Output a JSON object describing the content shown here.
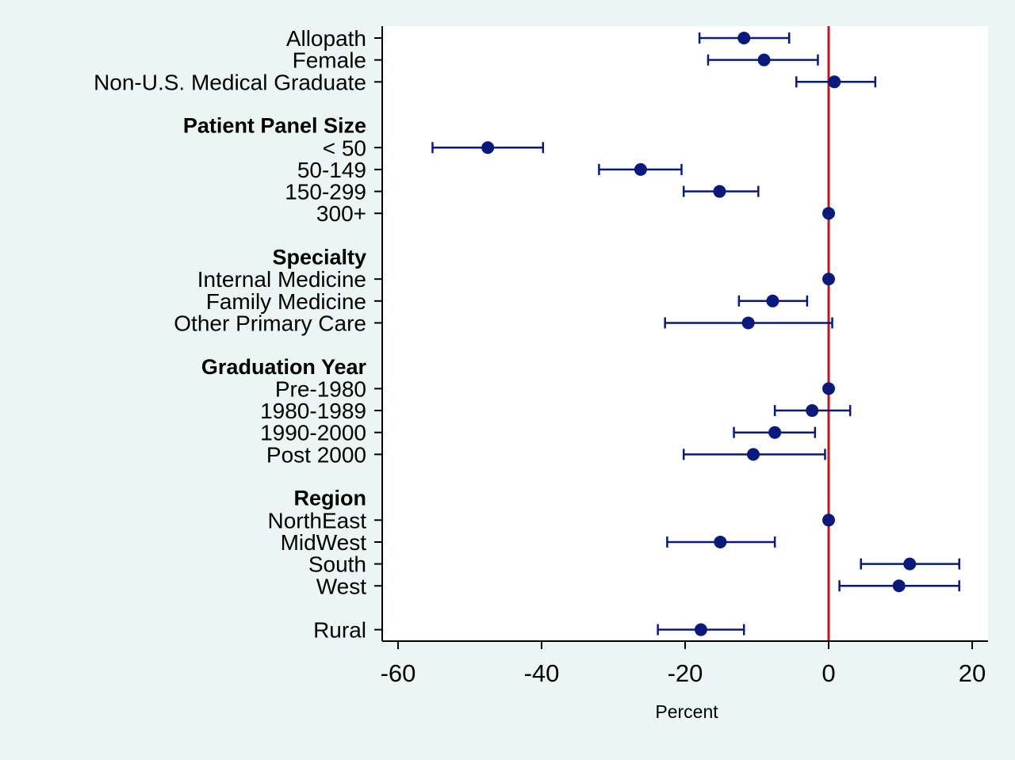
{
  "chart_data": {
    "type": "scatter",
    "subtype": "coefficient-plot-with-confidence-intervals",
    "title": "",
    "xlabel": "Percent",
    "ylabel": "",
    "xlim": [
      -62,
      22
    ],
    "xticks": [
      -60,
      -40,
      -20,
      0,
      20
    ],
    "grid": false,
    "legend": "none",
    "reference_line": {
      "x": 0,
      "color": "#c0161d"
    },
    "colors": {
      "background": "#eaf5f4",
      "plot_area": "#ffffff",
      "points": "#0a1a7c",
      "error_bars": "#0a1a7c",
      "axis": "#000000"
    },
    "rows": [
      {
        "label": "Allopath",
        "header": false,
        "estimate": -11.8,
        "ci": [
          -18.0,
          -5.5
        ]
      },
      {
        "label": "Female",
        "header": false,
        "estimate": -9.0,
        "ci": [
          -16.8,
          -1.5
        ]
      },
      {
        "label": "Non-U.S. Medical Graduate",
        "header": false,
        "estimate": 0.8,
        "ci": [
          -4.5,
          6.5
        ]
      },
      {
        "label": "",
        "header": false,
        "spacer": true
      },
      {
        "label": "Patient Panel Size",
        "header": true
      },
      {
        "label": "< 50",
        "header": false,
        "estimate": -47.5,
        "ci": [
          -55.2,
          -39.8
        ]
      },
      {
        "label": "50-149",
        "header": false,
        "estimate": -26.2,
        "ci": [
          -32.0,
          -20.5
        ]
      },
      {
        "label": "150-299",
        "header": false,
        "estimate": -15.2,
        "ci": [
          -20.2,
          -9.8
        ]
      },
      {
        "label": "300+",
        "header": false,
        "estimate": 0,
        "ci": [
          0,
          0
        ]
      },
      {
        "label": "",
        "header": false,
        "spacer": true
      },
      {
        "label": "Specialty",
        "header": true
      },
      {
        "label": "Internal Medicine",
        "header": false,
        "estimate": 0,
        "ci": [
          0,
          0
        ]
      },
      {
        "label": "Family Medicine",
        "header": false,
        "estimate": -7.8,
        "ci": [
          -12.5,
          -3.0
        ]
      },
      {
        "label": "Other Primary Care",
        "header": false,
        "estimate": -11.2,
        "ci": [
          -22.8,
          0.5
        ]
      },
      {
        "label": "",
        "header": false,
        "spacer": true
      },
      {
        "label": "Graduation Year",
        "header": true
      },
      {
        "label": "Pre-1980",
        "header": false,
        "estimate": 0,
        "ci": [
          0,
          0
        ]
      },
      {
        "label": "1980-1989",
        "header": false,
        "estimate": -2.3,
        "ci": [
          -7.5,
          3.0
        ]
      },
      {
        "label": "1990-2000",
        "header": false,
        "estimate": -7.5,
        "ci": [
          -13.2,
          -1.9
        ]
      },
      {
        "label": "Post 2000",
        "header": false,
        "estimate": -10.5,
        "ci": [
          -20.2,
          -0.5
        ]
      },
      {
        "label": "",
        "header": false,
        "spacer": true
      },
      {
        "label": "Region",
        "header": true
      },
      {
        "label": "NorthEast",
        "header": false,
        "estimate": 0,
        "ci": [
          0,
          0
        ]
      },
      {
        "label": "MidWest",
        "header": false,
        "estimate": -15.1,
        "ci": [
          -22.5,
          -7.5
        ]
      },
      {
        "label": "South",
        "header": false,
        "estimate": 11.3,
        "ci": [
          4.5,
          18.2
        ]
      },
      {
        "label": "West",
        "header": false,
        "estimate": 9.8,
        "ci": [
          1.5,
          18.2
        ]
      },
      {
        "label": "",
        "header": false,
        "spacer": true
      },
      {
        "label": "Rural",
        "header": false,
        "estimate": -17.8,
        "ci": [
          -23.8,
          -11.8
        ]
      }
    ]
  }
}
